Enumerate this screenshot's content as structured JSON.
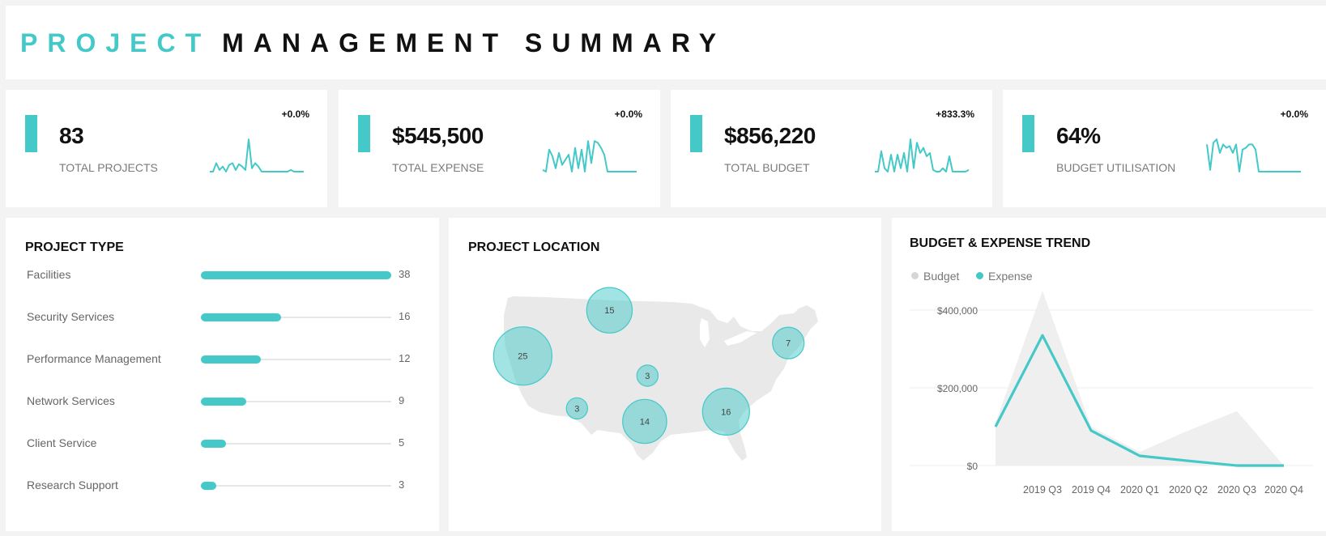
{
  "header": {
    "title_part1": "PROJECT",
    "title_part2": "MANAGEMENT SUMMARY"
  },
  "colors": {
    "accent": "#45c8c8",
    "budget": "#d6d6d6",
    "map": "#e9e9e9",
    "bubble": "#45c8c8"
  },
  "kpis": [
    {
      "value": "83",
      "label": "TOTAL PROJECTS",
      "delta": "+0.0%",
      "spark": [
        0.0,
        0.0,
        0.25,
        0.05,
        0.15,
        0.0,
        0.2,
        0.25,
        0.05,
        0.22,
        0.15,
        0.05,
        0.95,
        0.1,
        0.25,
        0.15,
        0.0,
        0.0,
        0.0,
        0.0,
        0.0,
        0.0,
        0.0,
        0.0,
        0.0,
        0.05,
        0.0,
        0.0,
        0.0,
        0.0
      ]
    },
    {
      "value": "$545,500",
      "label": "TOTAL EXPENSE",
      "delta": "+0.0%",
      "spark": [
        0.05,
        0.0,
        0.65,
        0.45,
        0.1,
        0.55,
        0.2,
        0.35,
        0.5,
        0.0,
        0.7,
        0.1,
        0.65,
        0.0,
        0.9,
        0.25,
        0.9,
        0.85,
        0.7,
        0.5,
        0.0,
        0.0,
        0.0,
        0.0,
        0.0,
        0.0,
        0.0,
        0.0,
        0.0,
        0.0
      ]
    },
    {
      "value": "$856,220",
      "label": "TOTAL BUDGET",
      "delta": "+833.3%",
      "spark": [
        0.0,
        0.0,
        0.6,
        0.1,
        0.0,
        0.5,
        0.0,
        0.5,
        0.1,
        0.55,
        0.0,
        0.95,
        0.1,
        0.85,
        0.55,
        0.7,
        0.45,
        0.55,
        0.05,
        0.0,
        0.0,
        0.1,
        0.0,
        0.45,
        0.0,
        0.0,
        0.0,
        0.0,
        0.0,
        0.05
      ]
    },
    {
      "value": "64%",
      "label": "BUDGET UTILISATION",
      "delta": "+0.0%",
      "spark": [
        0.8,
        0.05,
        0.85,
        0.95,
        0.55,
        0.8,
        0.7,
        0.75,
        0.55,
        0.8,
        0.0,
        0.65,
        0.7,
        0.8,
        0.8,
        0.65,
        0.0,
        0.0,
        0.0,
        0.0,
        0.0,
        0.0,
        0.0,
        0.0,
        0.0,
        0.0,
        0.0,
        0.0,
        0.0,
        0.0
      ]
    }
  ],
  "project_type": {
    "title": "PROJECT TYPE",
    "max": 38,
    "items": [
      {
        "name": "Facilities",
        "value": 38
      },
      {
        "name": "Security Services",
        "value": 16
      },
      {
        "name": "Performance Management",
        "value": 12
      },
      {
        "name": "Network Services",
        "value": 9
      },
      {
        "name": "Client Service",
        "value": 5
      },
      {
        "name": "Research Support",
        "value": 3
      }
    ]
  },
  "project_location": {
    "title": "PROJECT LOCATION",
    "bubbles": [
      {
        "value": 25,
        "lon": -121.5,
        "lat": 40.5
      },
      {
        "value": 15,
        "lon": -105.5,
        "lat": 47.5
      },
      {
        "value": 7,
        "lon": -72.5,
        "lat": 42.5
      },
      {
        "value": 3,
        "lon": -98.5,
        "lat": 37.5
      },
      {
        "value": 3,
        "lon": -111.5,
        "lat": 32.5
      },
      {
        "value": 14,
        "lon": -99.0,
        "lat": 30.5
      },
      {
        "value": 16,
        "lon": -84.0,
        "lat": 32.0
      }
    ]
  },
  "chart_data": {
    "type": "area",
    "title": "BUDGET & EXPENSE TREND",
    "categories": [
      "",
      "2019 Q3",
      "2019 Q4",
      "2020 Q1",
      "2020 Q2",
      "2020 Q3",
      "2020 Q4"
    ],
    "series": [
      {
        "name": "Budget",
        "values": [
          110000,
          450000,
          100000,
          35000,
          90000,
          140000,
          0
        ]
      },
      {
        "name": "Expense",
        "values": [
          100000,
          335000,
          90000,
          25000,
          12000,
          0,
          0
        ]
      }
    ],
    "ylim": [
      0,
      450000
    ],
    "yticks": [
      0,
      200000,
      400000
    ],
    "ytick_labels": [
      "$0",
      "$200,000",
      "$400,000"
    ],
    "legend": "top-left",
    "grid": true
  }
}
